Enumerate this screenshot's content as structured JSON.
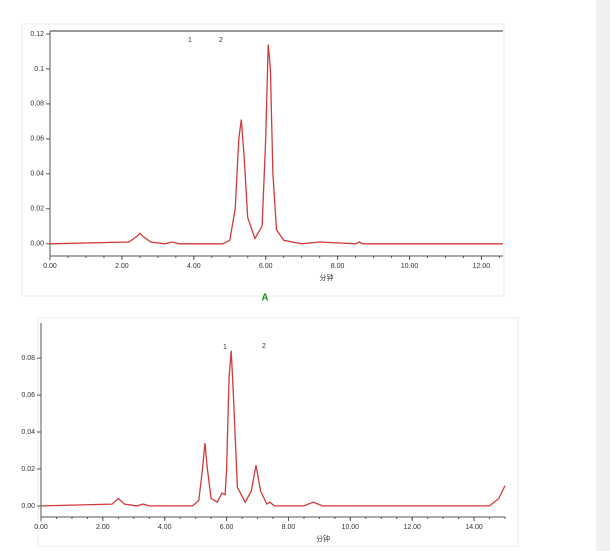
{
  "chart_data": [
    {
      "type": "line",
      "caption": "A",
      "x_label": "分钟",
      "annotations": [
        "1",
        "2"
      ],
      "color": "#d23a3a",
      "x": [
        0,
        2.2,
        2.4,
        2.5,
        2.6,
        2.8,
        3.2,
        3.4,
        3.6,
        4.8,
        5.0,
        5.15,
        5.25,
        5.32,
        5.4,
        5.5,
        5.7,
        5.9,
        6.0,
        6.07,
        6.13,
        6.2,
        6.3,
        6.5,
        7.0,
        7.5,
        8.5,
        8.6,
        8.7,
        12.6
      ],
      "values": [
        0,
        0.001,
        0.004,
        0.006,
        0.004,
        0.001,
        0,
        0.001,
        0,
        0,
        0.002,
        0.02,
        0.06,
        0.071,
        0.05,
        0.015,
        0.003,
        0.01,
        0.06,
        0.114,
        0.1,
        0.04,
        0.008,
        0.002,
        0,
        0.001,
        0,
        0.001,
        0,
        0
      ],
      "xlim": [
        0,
        12.6
      ],
      "ylim": [
        -0.007,
        0.1217
      ],
      "xticks": [
        {
          "value": 0,
          "label": "0.00"
        },
        {
          "value": 2,
          "label": "2.00"
        },
        {
          "value": 4,
          "label": "4.00"
        },
        {
          "value": 6,
          "label": "6.00"
        },
        {
          "value": 8,
          "label": "8.00"
        },
        {
          "value": 10,
          "label": "10.00"
        },
        {
          "value": 12,
          "label": "12.00"
        }
      ],
      "yticks": [
        {
          "value": 0,
          "label": "0.00"
        },
        {
          "value": 0.02,
          "label": "0.02"
        },
        {
          "value": 0.04,
          "label": "0.04"
        },
        {
          "value": 0.06,
          "label": "0.06"
        },
        {
          "value": 0.08,
          "label": "0.08"
        },
        0.1,
        0.12
      ]
    },
    {
      "type": "line",
      "x_label": "分钟",
      "annotations": [
        "1",
        "2"
      ],
      "color": "#d23a3a",
      "x": [
        0,
        2.3,
        2.5,
        2.7,
        3.1,
        3.3,
        3.5,
        4.9,
        5.1,
        5.22,
        5.3,
        5.38,
        5.5,
        5.7,
        5.85,
        5.95,
        6.0,
        6.08,
        6.15,
        6.22,
        6.35,
        6.6,
        6.8,
        6.95,
        7.1,
        7.3,
        7.4,
        7.55,
        8.5,
        8.8,
        9.1,
        14.5,
        14.8,
        15
      ],
      "values": [
        0,
        0.001,
        0.004,
        0.001,
        0,
        0.001,
        0,
        0,
        0.003,
        0.02,
        0.034,
        0.02,
        0.004,
        0.002,
        0.007,
        0.006,
        0.02,
        0.07,
        0.084,
        0.06,
        0.01,
        0.002,
        0.008,
        0.022,
        0.008,
        0.001,
        0.002,
        0,
        0,
        0.002,
        0,
        0,
        0.004,
        0.011
      ],
      "xlim": [
        0,
        15
      ],
      "ylim": [
        -0.006,
        0.099
      ],
      "xticks": [
        {
          "value": 0,
          "label": "0.00"
        },
        {
          "value": 2,
          "label": "2.00"
        },
        {
          "value": 4,
          "label": "4.00"
        },
        {
          "value": 6,
          "label": "6.00"
        },
        {
          "value": 8,
          "label": "8.00"
        },
        {
          "value": 10,
          "label": "10.00"
        },
        {
          "value": 12,
          "label": "12.00"
        },
        {
          "value": 14,
          "label": "14.00"
        }
      ],
      "yticks": [
        {
          "value": 0,
          "label": "0.00"
        },
        {
          "value": 0.02,
          "label": "0.02"
        },
        {
          "value": 0.04,
          "label": "0.04"
        },
        {
          "value": 0.06,
          "label": "0.06"
        },
        {
          "value": 0.08,
          "label": "0.08"
        }
      ]
    }
  ]
}
